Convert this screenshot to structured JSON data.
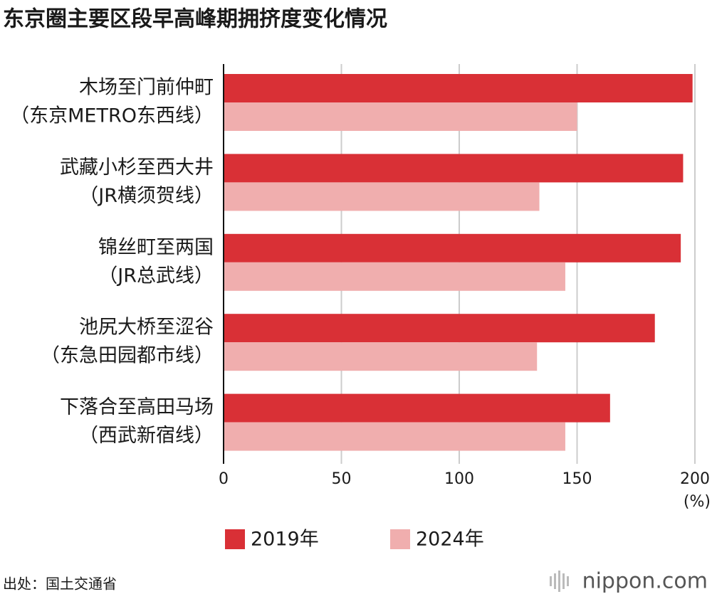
{
  "chart_data": {
    "type": "bar",
    "orientation": "horizontal",
    "title": "东京圈主要区段早高峰期拥挤度变化情况",
    "categories": [
      [
        "木场至门前仲町",
        "（东京METRO东西线）"
      ],
      [
        "武藏小杉至西大井",
        "（JR横须贺线）"
      ],
      [
        "锦丝町至两国",
        "（JR总武线）"
      ],
      [
        "池尻大桥至涩谷",
        "（东急田园都市线）"
      ],
      [
        "下落合至高田马场",
        "（西武新宿线）"
      ]
    ],
    "series": [
      {
        "name": "2019年",
        "color": "#d93036",
        "values": [
          199,
          195,
          194,
          183,
          164
        ]
      },
      {
        "name": "2024年",
        "color": "#f0aeae",
        "values": [
          150,
          134,
          145,
          133,
          145
        ]
      }
    ],
    "xlim": [
      0,
      200
    ],
    "xticks": [
      0,
      50,
      100,
      150,
      200
    ],
    "x_unit": "(%)",
    "grid": true,
    "legend": "bottom",
    "source": "出处：国土交通省",
    "brand": "nippon.com"
  }
}
